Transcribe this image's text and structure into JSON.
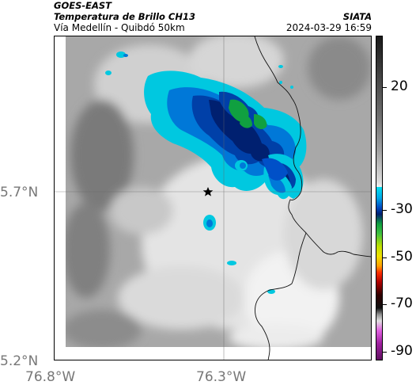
{
  "header": {
    "satellite": "GOES-EAST",
    "product": "Temperatura de Brillo CH13",
    "route": "Vía Medellín - Quibdó 50km",
    "organization": "SIATA",
    "datetime": "2024-03-29 16:59"
  },
  "axes": {
    "lat_labels": [
      "5.7°N",
      "5.2°N"
    ],
    "lon_labels": [
      "76.8°W",
      "76.3°W"
    ]
  },
  "colorbar": {
    "labels": [
      "20",
      "-30",
      "-50",
      "-70",
      "-90"
    ],
    "unit": ""
  },
  "map": {
    "marker": "star",
    "colors": {
      "cloud_cold": "#00c8e0",
      "cloud_mid": "#0050c8",
      "cloud_core": "#002060",
      "cloud_peak": "#10a040",
      "background_gray": "#a8a8a8"
    }
  }
}
